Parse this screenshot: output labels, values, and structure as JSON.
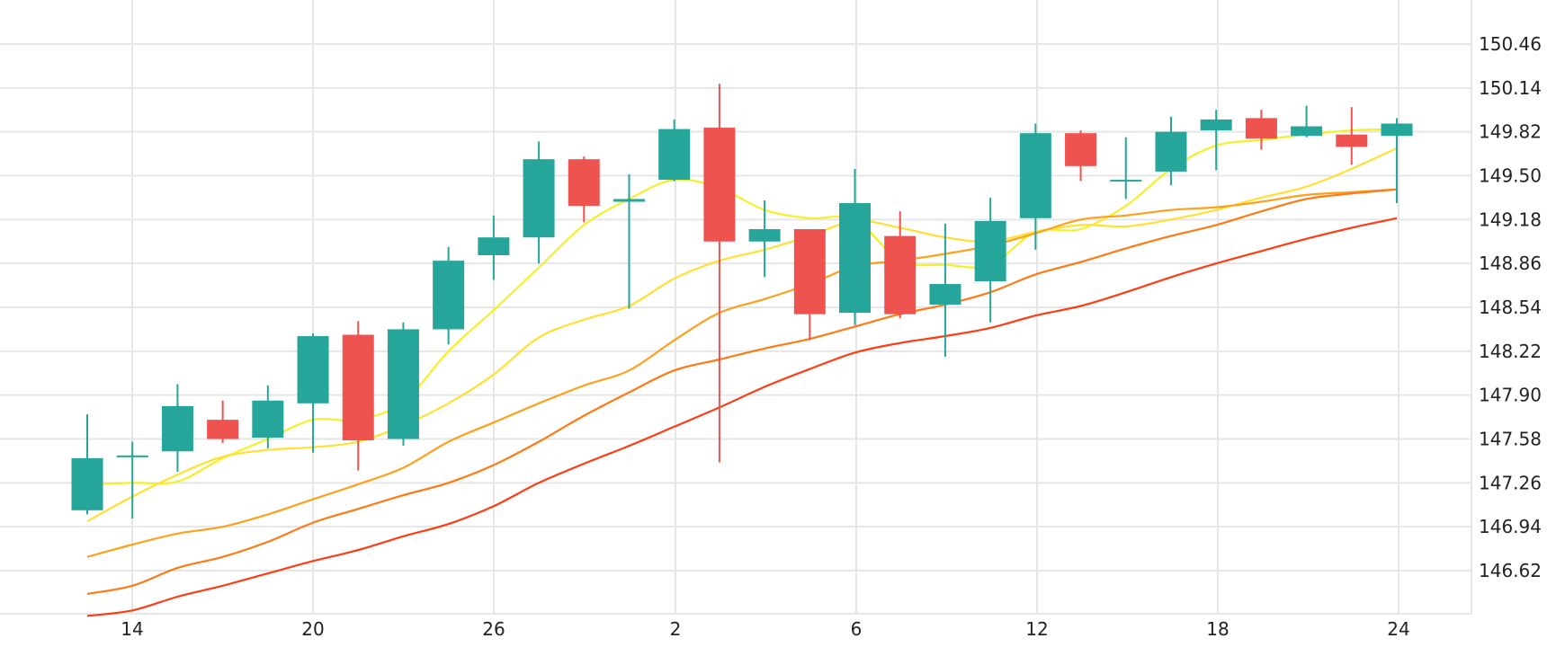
{
  "chart_data": {
    "type": "candlestick",
    "title": "",
    "xlabel": "",
    "ylabel": "",
    "x_tick_labels": [
      "14",
      "20",
      "26",
      "2",
      "6",
      "12",
      "18",
      "24"
    ],
    "y_tick_labels": [
      "150.46",
      "150.14",
      "149.82",
      "149.50",
      "149.18",
      "148.86",
      "148.54",
      "148.22",
      "147.90",
      "147.58",
      "147.26",
      "146.94",
      "146.62"
    ],
    "ylim": [
      146.3,
      150.7
    ],
    "grid": true,
    "colors": {
      "up": "#26a69a",
      "down": "#ef5350"
    },
    "candles": [
      {
        "o": 147.06,
        "h": 147.76,
        "l": 147.03,
        "c": 147.44
      },
      {
        "o": 147.46,
        "h": 147.56,
        "l": 147.0,
        "c": 147.46
      },
      {
        "o": 147.49,
        "h": 147.98,
        "l": 147.34,
        "c": 147.82
      },
      {
        "o": 147.72,
        "h": 147.86,
        "l": 147.55,
        "c": 147.58
      },
      {
        "o": 147.59,
        "h": 147.97,
        "l": 147.51,
        "c": 147.86
      },
      {
        "o": 147.84,
        "h": 148.35,
        "l": 147.48,
        "c": 148.33
      },
      {
        "o": 148.34,
        "h": 148.44,
        "l": 147.35,
        "c": 147.57
      },
      {
        "o": 147.58,
        "h": 148.43,
        "l": 147.53,
        "c": 148.38
      },
      {
        "o": 148.38,
        "h": 148.98,
        "l": 148.27,
        "c": 148.88
      },
      {
        "o": 148.92,
        "h": 149.21,
        "l": 148.74,
        "c": 149.05
      },
      {
        "o": 149.05,
        "h": 149.75,
        "l": 148.86,
        "c": 149.62
      },
      {
        "o": 149.62,
        "h": 149.64,
        "l": 149.16,
        "c": 149.28
      },
      {
        "o": 149.31,
        "h": 149.51,
        "l": 148.53,
        "c": 149.33
      },
      {
        "o": 149.47,
        "h": 149.91,
        "l": 149.46,
        "c": 149.84
      },
      {
        "o": 149.85,
        "h": 150.17,
        "l": 147.41,
        "c": 149.02
      },
      {
        "o": 149.02,
        "h": 149.32,
        "l": 148.76,
        "c": 149.11
      },
      {
        "o": 149.11,
        "h": 149.11,
        "l": 148.3,
        "c": 148.49
      },
      {
        "o": 148.5,
        "h": 149.55,
        "l": 148.41,
        "c": 149.3
      },
      {
        "o": 149.06,
        "h": 149.24,
        "l": 148.46,
        "c": 148.49
      },
      {
        "o": 148.56,
        "h": 149.15,
        "l": 148.18,
        "c": 148.71
      },
      {
        "o": 148.73,
        "h": 149.34,
        "l": 148.43,
        "c": 149.17
      },
      {
        "o": 149.19,
        "h": 149.88,
        "l": 148.96,
        "c": 149.81
      },
      {
        "o": 149.81,
        "h": 149.83,
        "l": 149.46,
        "c": 149.57
      },
      {
        "o": 149.47,
        "h": 149.78,
        "l": 149.33,
        "c": 149.47
      },
      {
        "o": 149.53,
        "h": 149.93,
        "l": 149.43,
        "c": 149.82
      },
      {
        "o": 149.83,
        "h": 149.98,
        "l": 149.54,
        "c": 149.91
      },
      {
        "o": 149.92,
        "h": 149.98,
        "l": 149.69,
        "c": 149.77
      },
      {
        "o": 149.79,
        "h": 150.01,
        "l": 149.78,
        "c": 149.86
      },
      {
        "o": 149.8,
        "h": 150.0,
        "l": 149.58,
        "c": 149.71
      },
      {
        "o": 149.79,
        "h": 149.92,
        "l": 149.3,
        "c": 149.88
      }
    ],
    "moving_averages": [
      {
        "color": "#f5f02a",
        "values": [
          147.25,
          147.26,
          147.27,
          147.44,
          147.58,
          147.72,
          147.72,
          147.85,
          148.22,
          148.52,
          148.83,
          149.14,
          149.33,
          149.47,
          149.41,
          149.25,
          149.19,
          149.18,
          148.88,
          148.85,
          148.85,
          149.09,
          149.11,
          149.28,
          149.55,
          149.72,
          149.76,
          149.8,
          149.83,
          149.84
        ]
      },
      {
        "color": "#ffe033",
        "values": [
          146.98,
          147.16,
          147.32,
          147.45,
          147.5,
          147.52,
          147.56,
          147.68,
          147.84,
          148.05,
          148.32,
          148.45,
          148.55,
          148.75,
          148.88,
          148.96,
          149.06,
          149.17,
          149.12,
          149.05,
          149.02,
          149.09,
          149.14,
          149.13,
          149.18,
          149.25,
          149.34,
          149.42,
          149.55,
          149.7
        ]
      },
      {
        "color": "#ffa01c",
        "values": [
          146.72,
          146.81,
          146.89,
          146.94,
          147.03,
          147.14,
          147.25,
          147.37,
          147.56,
          147.7,
          147.84,
          147.97,
          148.08,
          148.3,
          148.5,
          148.6,
          148.71,
          148.84,
          148.88,
          148.93,
          148.99,
          149.08,
          149.18,
          149.21,
          149.25,
          149.27,
          149.31,
          149.36,
          149.38,
          149.4
        ]
      },
      {
        "color": "#ff7a15",
        "values": [
          146.45,
          146.51,
          146.64,
          146.72,
          146.83,
          146.97,
          147.07,
          147.17,
          147.26,
          147.39,
          147.56,
          147.75,
          147.92,
          148.08,
          148.16,
          148.24,
          148.31,
          148.4,
          148.49,
          148.56,
          148.65,
          148.78,
          148.87,
          148.97,
          149.06,
          149.14,
          149.24,
          149.33,
          149.37,
          149.4
        ]
      },
      {
        "color": "#ff3d14",
        "values": [
          146.29,
          146.33,
          146.43,
          146.51,
          146.6,
          146.69,
          146.77,
          146.87,
          146.96,
          147.09,
          147.26,
          147.4,
          147.53,
          147.67,
          147.81,
          147.96,
          148.09,
          148.21,
          148.28,
          148.33,
          148.39,
          148.48,
          148.55,
          148.65,
          148.76,
          148.86,
          148.95,
          149.04,
          149.12,
          149.19
        ]
      }
    ]
  }
}
